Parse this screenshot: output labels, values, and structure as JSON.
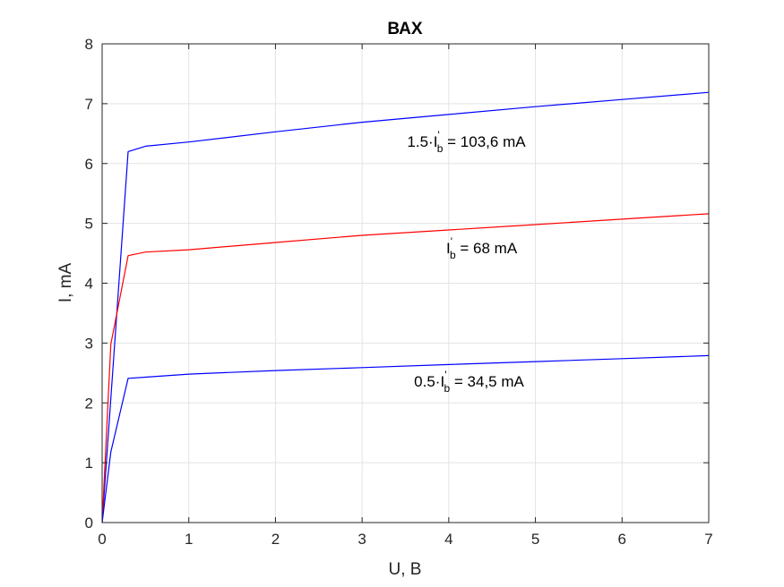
{
  "chart_data": {
    "type": "line",
    "title": "ВАХ",
    "xlabel": "U, В",
    "ylabel": "I, mA",
    "xlim": [
      0,
      7
    ],
    "ylim": [
      0,
      8
    ],
    "xticks": [
      "0",
      "1",
      "2",
      "3",
      "4",
      "5",
      "6",
      "7"
    ],
    "yticks": [
      "0",
      "1",
      "2",
      "3",
      "4",
      "5",
      "6",
      "7",
      "8"
    ],
    "grid": true,
    "legend": "none",
    "series": [
      {
        "color": "#0000ff",
        "x": [
          0,
          0.3,
          0.5,
          1,
          2,
          3,
          4,
          5,
          6,
          7
        ],
        "y": [
          0,
          6.2,
          6.29,
          6.36,
          6.53,
          6.69,
          6.82,
          6.95,
          7.07,
          7.19
        ]
      },
      {
        "color": "#ff0000",
        "x": [
          0,
          0.1,
          0.3,
          0.5,
          1,
          2,
          3,
          4,
          5,
          6,
          7
        ],
        "y": [
          0,
          2.98,
          4.46,
          4.52,
          4.56,
          4.68,
          4.8,
          4.89,
          4.98,
          5.07,
          5.16
        ]
      },
      {
        "color": "#0000ff",
        "x": [
          0,
          0.1,
          0.3,
          0.5,
          1,
          2,
          3,
          4,
          5,
          6,
          7
        ],
        "y": [
          0,
          1.18,
          2.41,
          2.43,
          2.48,
          2.54,
          2.59,
          2.64,
          2.69,
          2.74,
          2.79
        ]
      }
    ],
    "annotations": [
      {
        "prefix": "1.5·I",
        "sup": "'",
        "sub": "b",
        "suffix": " = 103,6 mA",
        "x": 3.52,
        "y": 6.28
      },
      {
        "prefix": "I",
        "sup": "'",
        "sub": "b",
        "suffix": " = 68 mA",
        "x": 3.97,
        "y": 4.5
      },
      {
        "prefix": "0.5·I",
        "sup": "'",
        "sub": "b",
        "suffix": " = 34,5 mA",
        "x": 3.6,
        "y": 2.27
      }
    ]
  }
}
